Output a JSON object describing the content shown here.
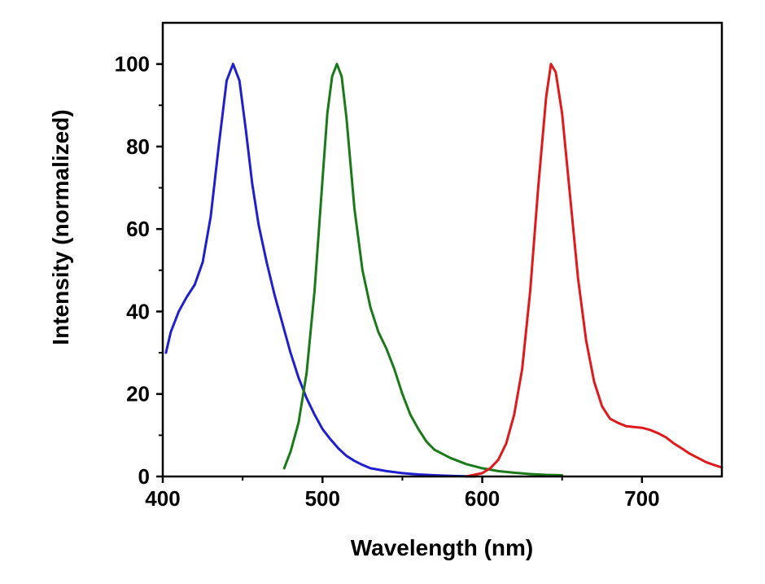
{
  "chart_data": {
    "type": "line",
    "title": "",
    "xlabel": "Wavelength (nm)",
    "ylabel": "Intensity (normalized)",
    "xlim": [
      400,
      750
    ],
    "ylim": [
      0,
      110
    ],
    "xticks": [
      400,
      500,
      600,
      700
    ],
    "yticks": [
      0,
      20,
      40,
      60,
      80,
      100
    ],
    "grid": false,
    "legend": "none",
    "series": [
      {
        "name": "blue",
        "color": "#1f1fcf",
        "x": [
          402,
          405,
          410,
          415,
          420,
          425,
          430,
          435,
          440,
          444,
          448,
          452,
          456,
          460,
          465,
          470,
          475,
          480,
          485,
          490,
          495,
          500,
          505,
          510,
          515,
          520,
          525,
          530,
          540,
          550,
          560,
          570,
          580,
          590,
          595
        ],
        "y": [
          30,
          35,
          40,
          43.5,
          46.5,
          52,
          63,
          80,
          96,
          100,
          96,
          84,
          71,
          61,
          52,
          44,
          37,
          30,
          24,
          19,
          15,
          11.5,
          9,
          6.8,
          5,
          3.8,
          2.8,
          2,
          1.3,
          0.8,
          0.5,
          0.3,
          0.15,
          0.05,
          0
        ]
      },
      {
        "name": "green",
        "color": "#1a7a1a",
        "x": [
          476,
          480,
          485,
          490,
          495,
          500,
          503,
          506,
          509,
          512,
          515,
          520,
          525,
          530,
          535,
          540,
          545,
          550,
          555,
          560,
          565,
          570,
          580,
          590,
          600,
          610,
          620,
          630,
          640,
          650
        ],
        "y": [
          2,
          6,
          13,
          25,
          45,
          72,
          88,
          97,
          100,
          97,
          87,
          65,
          50,
          41,
          35,
          31,
          26,
          20,
          15,
          11.5,
          8.5,
          6.5,
          4.5,
          3,
          2,
          1.3,
          0.9,
          0.6,
          0.4,
          0.3
        ]
      },
      {
        "name": "red",
        "color": "#e01a1a",
        "x": [
          590,
          600,
          605,
          610,
          615,
          620,
          625,
          630,
          635,
          640,
          643,
          646,
          650,
          655,
          660,
          665,
          670,
          675,
          680,
          685,
          690,
          695,
          700,
          705,
          710,
          715,
          720,
          725,
          730,
          735,
          740,
          745,
          750
        ],
        "y": [
          0,
          0.8,
          2,
          4,
          8,
          15,
          26,
          45,
          70,
          92,
          100,
          98,
          88,
          68,
          48,
          33,
          23,
          17,
          14,
          13,
          12.2,
          12,
          11.8,
          11.3,
          10.5,
          9.5,
          8,
          6.8,
          5.5,
          4.5,
          3.5,
          2.8,
          2.2
        ]
      }
    ]
  }
}
